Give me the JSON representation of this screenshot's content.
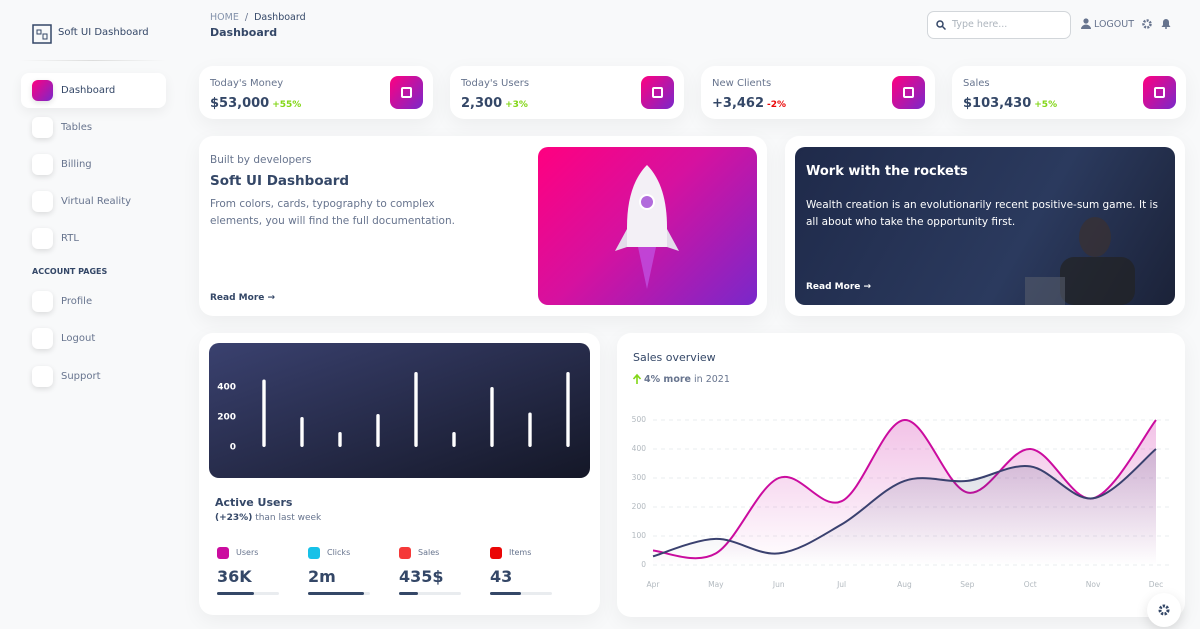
{
  "sidebar": {
    "brand": "Soft UI Dashboard",
    "items": [
      "Dashboard",
      "Tables",
      "Billing",
      "Virtual Reality",
      "RTL"
    ],
    "section": "ACCOUNT PAGES",
    "account_items": [
      "Profile",
      "Logout",
      "Support"
    ]
  },
  "header": {
    "breadcrumb_root": "HOME",
    "breadcrumb_sep": "/",
    "breadcrumb_current": "Dashboard",
    "title": "Dashboard",
    "search_placeholder": "Type here...",
    "logout": "LOGOUT"
  },
  "stats": [
    {
      "label": "Today's Money",
      "value": "$53,000",
      "change": "+55%",
      "change_color": "#82d616"
    },
    {
      "label": "Today's Users",
      "value": "2,300",
      "change": "+3%",
      "change_color": "#82d616"
    },
    {
      "label": "New Clients",
      "value": "+3,462",
      "change": "-2%",
      "change_color": "#ea0606"
    },
    {
      "label": "Sales",
      "value": "$103,430",
      "change": "+5%",
      "change_color": "#82d616"
    }
  ],
  "builder_card": {
    "eyebrow": "Built by developers",
    "title": "Soft UI Dashboard",
    "text": "From colors, cards, typography to complex elements, you will find the full documentation.",
    "link": "Read More"
  },
  "rockets_card": {
    "title": "Work with the rockets",
    "text": "Wealth creation is an evolutionarily recent positive-sum game. It is all about who take the opportunity first.",
    "link": "Read More"
  },
  "active_users": {
    "title": "Active Users",
    "change": "(+23%)",
    "period": "than last week",
    "progress_max": 100,
    "metrics": [
      {
        "label": "Users",
        "value": "36K",
        "progress": 60,
        "color": "#cb0c9f"
      },
      {
        "label": "Clicks",
        "value": "2m",
        "progress": 90,
        "color": "#17c1e8"
      },
      {
        "label": "Sales",
        "value": "435$",
        "progress": 30,
        "color": "#f53939"
      },
      {
        "label": "Items",
        "value": "43",
        "progress": 50,
        "color": "#ea0606"
      }
    ]
  },
  "chart_data": [
    {
      "type": "bar",
      "values": [
        450,
        200,
        100,
        220,
        500,
        100,
        400,
        230,
        500
      ],
      "color": "#ffffff",
      "ylim": [
        0,
        500
      ],
      "yticks": [
        0,
        200,
        400
      ],
      "grid": false
    },
    {
      "type": "line",
      "title": "Sales overview",
      "annotation": {
        "highlight": "4% more",
        "text": "in 2021"
      },
      "categories": [
        "Apr",
        "May",
        "Jun",
        "Jul",
        "Aug",
        "Sep",
        "Oct",
        "Nov",
        "Dec"
      ],
      "series": [
        {
          "color": "#cb0c9f",
          "values": [
            50,
            40,
            300,
            220,
            500,
            250,
            400,
            230,
            500
          ]
        },
        {
          "color": "#3a416f",
          "values": [
            30,
            90,
            40,
            140,
            290,
            290,
            340,
            230,
            400
          ]
        }
      ],
      "ylim": [
        0,
        500
      ],
      "yticks": [
        0,
        100,
        200,
        300,
        400,
        500
      ],
      "grid": true
    }
  ]
}
